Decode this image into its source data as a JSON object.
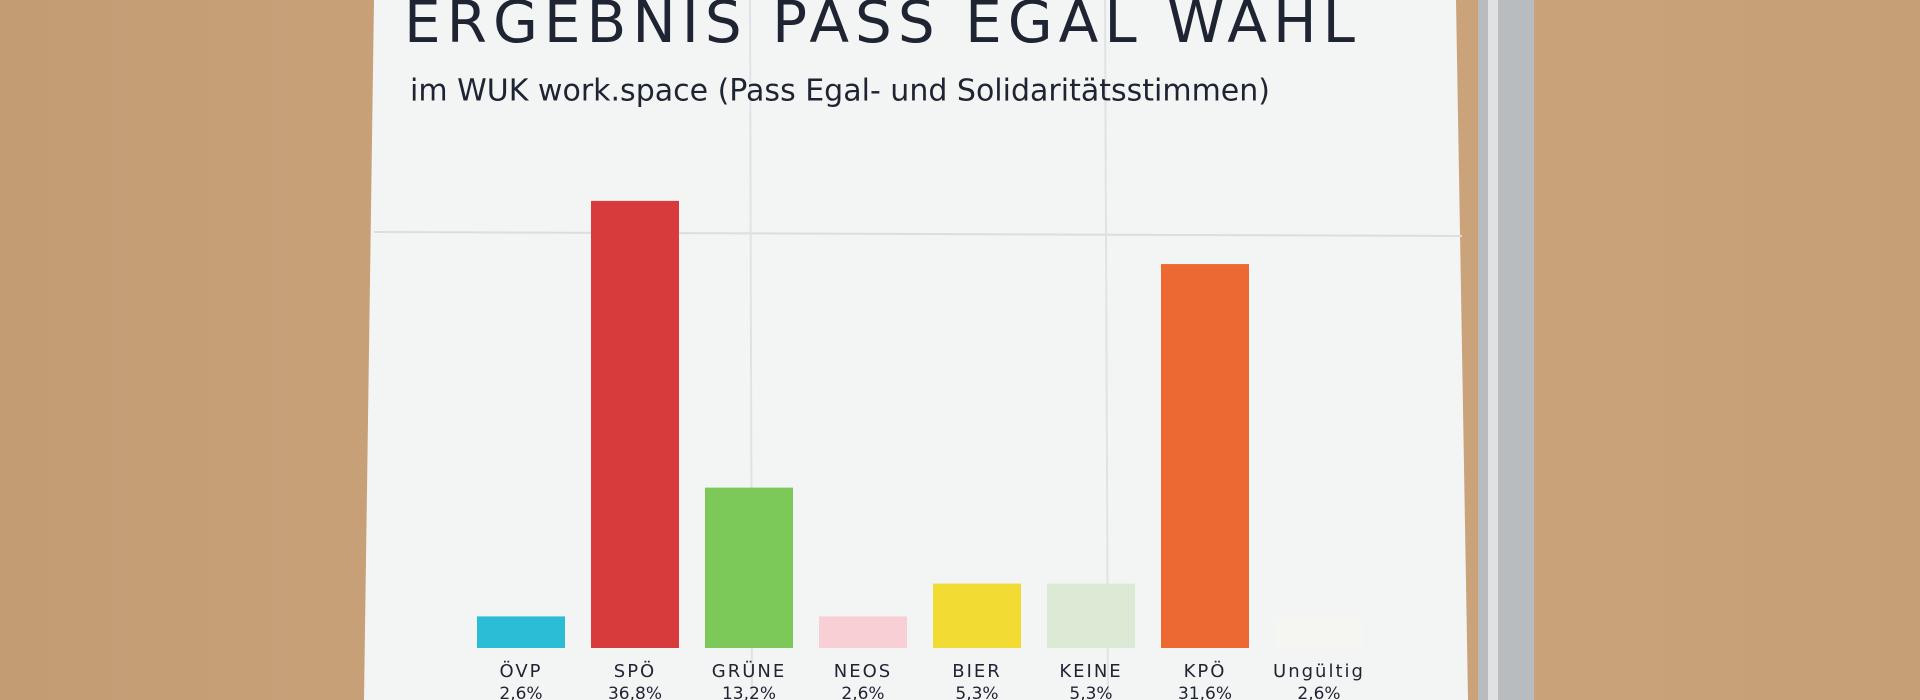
{
  "chart_data": {
    "type": "bar",
    "title": "ERGEBNIS  PASS EGAL WAHL",
    "subtitle": "im WUK work.space (Pass Egal- und Solidaritätsstimmen)",
    "categories": [
      "ÖVP",
      "SPÖ",
      "GRÜNE",
      "NEOS",
      "BIER",
      "KEINE",
      "KPÖ",
      "Ungültig"
    ],
    "values": [
      2.6,
      36.8,
      13.2,
      2.6,
      5.3,
      5.3,
      31.6,
      2.6
    ],
    "value_labels": [
      "2,6%",
      "36,8%",
      "13,2%",
      "2,6%",
      "5,3%",
      "5,3%",
      "31,6%",
      "2,6%"
    ],
    "colors": [
      "#2bbcd6",
      "#d83b3b",
      "#7cc95a",
      "#f7cfd4",
      "#f2dc33",
      "#dce9d5",
      "#ec6a32",
      "#f5f5f2"
    ]
  }
}
